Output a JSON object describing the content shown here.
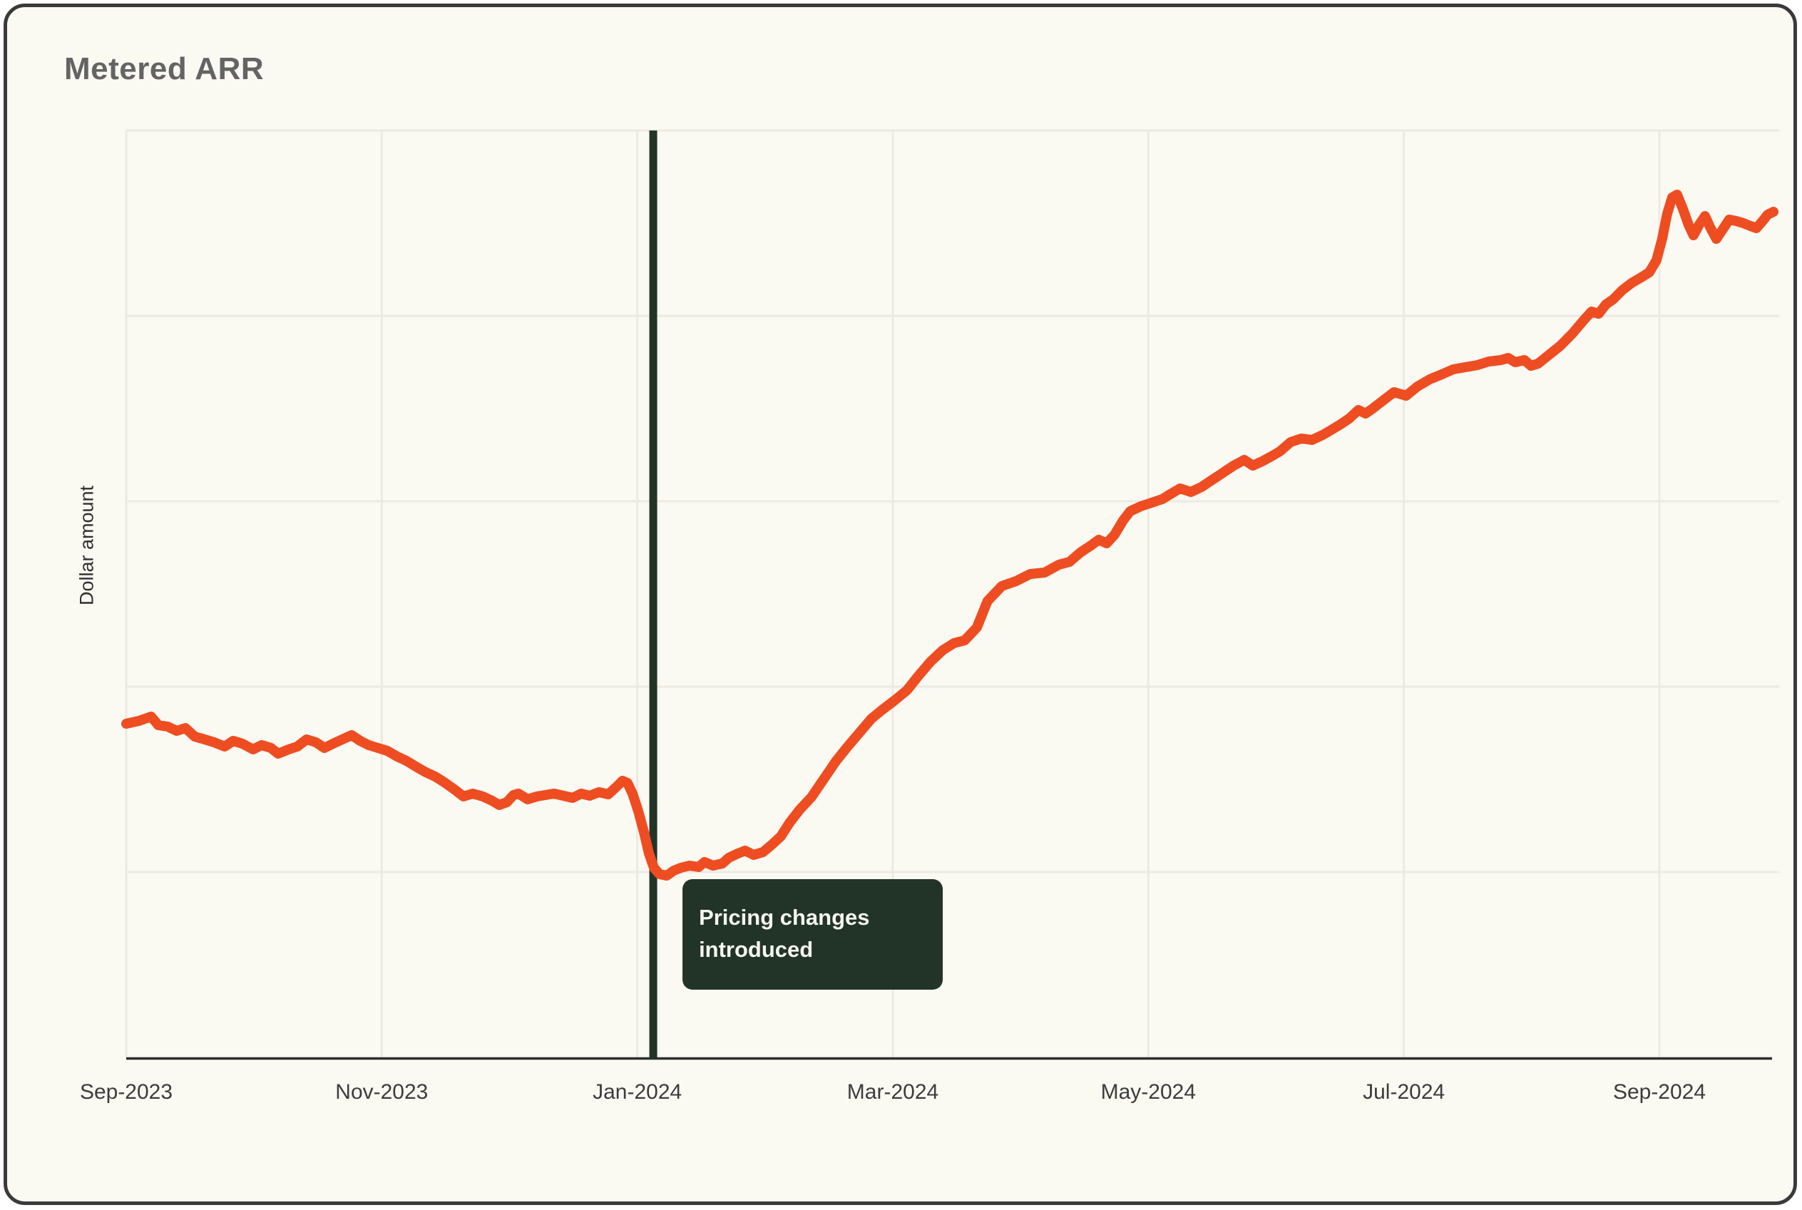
{
  "header": {
    "title": "Metered ARR"
  },
  "colors": {
    "background": "#FAF9F2",
    "card_border": "#3a3a3a",
    "grid": "#ECEAE2",
    "axis": "#2D2D2D",
    "series_line": "#EE4D22",
    "annotation": "#223428",
    "annotation_text": "#F7F6EF",
    "title_text": "#646464",
    "tick_text": "#3C3C3C",
    "ylabel_text": "#2F2F2F"
  },
  "chart_data": {
    "type": "line",
    "title": "Metered ARR",
    "xlabel": "",
    "ylabel": "Dollar amount",
    "legend": "none",
    "grid": {
      "vertical_at_ticks": true,
      "horizontal_lines": 5
    },
    "x_axis": {
      "unit": "months since Sep-2023",
      "lim": [
        0,
        12.94
      ],
      "ticks": [
        {
          "m": 0,
          "label": "Sep-2023"
        },
        {
          "m": 2,
          "label": "Nov-2023"
        },
        {
          "m": 4,
          "label": "Jan-2024"
        },
        {
          "m": 6,
          "label": "Mar-2024"
        },
        {
          "m": 8,
          "label": "May-2024"
        },
        {
          "m": 10,
          "label": "Jul-2024"
        },
        {
          "m": 12,
          "label": "Sep-2024"
        }
      ]
    },
    "y_axis": {
      "label": "Dollar amount",
      "ticks_visible": false,
      "lim": [
        0,
        1300
      ],
      "unit": "relative dollar amount (unlabeled axis)"
    },
    "annotation": {
      "label": "Pricing changes introduced",
      "label_lines": [
        "Pricing changes",
        "introduced"
      ],
      "x_months": 4.125,
      "date_equivalent": "early Jan-2024"
    },
    "series": [
      {
        "name": "Metered ARR",
        "color": "#EE4D22",
        "points": [
          [
            0.0,
            468
          ],
          [
            0.1,
            472
          ],
          [
            0.195,
            478
          ],
          [
            0.251,
            466
          ],
          [
            0.324,
            464
          ],
          [
            0.396,
            458
          ],
          [
            0.463,
            462
          ],
          [
            0.536,
            450
          ],
          [
            0.614,
            446
          ],
          [
            0.687,
            442
          ],
          [
            0.77,
            436
          ],
          [
            0.837,
            444
          ],
          [
            0.91,
            440
          ],
          [
            0.993,
            432
          ],
          [
            1.06,
            438
          ],
          [
            1.133,
            434
          ],
          [
            1.189,
            426
          ],
          [
            1.272,
            432
          ],
          [
            1.339,
            436
          ],
          [
            1.412,
            446
          ],
          [
            1.484,
            442
          ],
          [
            1.551,
            434
          ],
          [
            1.618,
            440
          ],
          [
            1.691,
            446
          ],
          [
            1.764,
            452
          ],
          [
            1.831,
            444
          ],
          [
            1.898,
            438
          ],
          [
            1.97,
            434
          ],
          [
            2.043,
            430
          ],
          [
            2.121,
            422
          ],
          [
            2.193,
            416
          ],
          [
            2.266,
            408
          ],
          [
            2.344,
            400
          ],
          [
            2.417,
            394
          ],
          [
            2.489,
            386
          ],
          [
            2.567,
            376
          ],
          [
            2.64,
            366
          ],
          [
            2.712,
            370
          ],
          [
            2.791,
            366
          ],
          [
            2.863,
            360
          ],
          [
            2.919,
            354
          ],
          [
            2.98,
            358
          ],
          [
            3.031,
            368
          ],
          [
            3.07,
            370
          ],
          [
            3.142,
            362
          ],
          [
            3.215,
            366
          ],
          [
            3.282,
            368
          ],
          [
            3.349,
            370
          ],
          [
            3.421,
            367
          ],
          [
            3.494,
            364
          ],
          [
            3.561,
            370
          ],
          [
            3.628,
            367
          ],
          [
            3.7,
            372
          ],
          [
            3.773,
            369
          ],
          [
            3.84,
            380
          ],
          [
            3.884,
            388
          ],
          [
            3.923,
            385
          ],
          [
            3.963,
            370
          ],
          [
            4.007,
            346
          ],
          [
            4.052,
            316
          ],
          [
            4.091,
            286
          ],
          [
            4.13,
            266
          ],
          [
            4.174,
            257
          ],
          [
            4.23,
            255
          ],
          [
            4.286,
            262
          ],
          [
            4.342,
            266
          ],
          [
            4.409,
            269
          ],
          [
            4.481,
            267
          ],
          [
            4.526,
            274
          ],
          [
            4.593,
            269
          ],
          [
            4.666,
            272
          ],
          [
            4.716,
            280
          ],
          [
            4.788,
            286
          ],
          [
            4.844,
            290
          ],
          [
            4.911,
            284
          ],
          [
            4.984,
            288
          ],
          [
            5.051,
            298
          ],
          [
            5.123,
            310
          ],
          [
            5.196,
            330
          ],
          [
            5.274,
            348
          ],
          [
            5.363,
            365
          ],
          [
            5.458,
            390
          ],
          [
            5.553,
            415
          ],
          [
            5.642,
            435
          ],
          [
            5.737,
            455
          ],
          [
            5.832,
            475
          ],
          [
            5.921,
            488
          ],
          [
            6.016,
            501
          ],
          [
            6.111,
            515
          ],
          [
            6.2,
            535
          ],
          [
            6.295,
            555
          ],
          [
            6.39,
            571
          ],
          [
            6.479,
            581
          ],
          [
            6.563,
            585
          ],
          [
            6.658,
            603
          ],
          [
            6.741,
            640
          ],
          [
            6.853,
            661
          ],
          [
            6.965,
            668
          ],
          [
            7.076,
            678
          ],
          [
            7.188,
            680
          ],
          [
            7.3,
            691
          ],
          [
            7.383,
            695
          ],
          [
            7.467,
            708
          ],
          [
            7.551,
            718
          ],
          [
            7.612,
            726
          ],
          [
            7.674,
            721
          ],
          [
            7.735,
            733
          ],
          [
            7.802,
            753
          ],
          [
            7.858,
            766
          ],
          [
            7.942,
            773
          ],
          [
            8.026,
            778
          ],
          [
            8.109,
            783
          ],
          [
            8.182,
            791
          ],
          [
            8.249,
            798
          ],
          [
            8.333,
            793
          ],
          [
            8.416,
            800
          ],
          [
            8.5,
            810
          ],
          [
            8.584,
            820
          ],
          [
            8.668,
            830
          ],
          [
            8.751,
            838
          ],
          [
            8.818,
            830
          ],
          [
            8.891,
            836
          ],
          [
            8.963,
            843
          ],
          [
            9.03,
            850
          ],
          [
            9.114,
            863
          ],
          [
            9.198,
            868
          ],
          [
            9.281,
            866
          ],
          [
            9.365,
            873
          ],
          [
            9.432,
            880
          ],
          [
            9.505,
            888
          ],
          [
            9.572,
            896
          ],
          [
            9.644,
            908
          ],
          [
            9.7,
            903
          ],
          [
            9.756,
            910
          ],
          [
            9.828,
            920
          ],
          [
            9.923,
            933
          ],
          [
            10.018,
            928
          ],
          [
            10.107,
            941
          ],
          [
            10.202,
            951
          ],
          [
            10.297,
            958
          ],
          [
            10.386,
            965
          ],
          [
            10.481,
            968
          ],
          [
            10.576,
            971
          ],
          [
            10.665,
            976
          ],
          [
            10.76,
            978
          ],
          [
            10.816,
            981
          ],
          [
            10.872,
            975
          ],
          [
            10.944,
            978
          ],
          [
            10.995,
            970
          ],
          [
            11.05,
            973
          ],
          [
            11.134,
            985
          ],
          [
            11.224,
            998
          ],
          [
            11.318,
            1015
          ],
          [
            11.413,
            1035
          ],
          [
            11.469,
            1046
          ],
          [
            11.525,
            1043
          ],
          [
            11.581,
            1056
          ],
          [
            11.637,
            1063
          ],
          [
            11.709,
            1076
          ],
          [
            11.782,
            1086
          ],
          [
            11.849,
            1093
          ],
          [
            11.921,
            1101
          ],
          [
            11.977,
            1118
          ],
          [
            12.022,
            1148
          ],
          [
            12.061,
            1183
          ],
          [
            12.1,
            1206
          ],
          [
            12.139,
            1210
          ],
          [
            12.184,
            1190
          ],
          [
            12.228,
            1168
          ],
          [
            12.267,
            1153
          ],
          [
            12.312,
            1168
          ],
          [
            12.357,
            1180
          ],
          [
            12.401,
            1163
          ],
          [
            12.446,
            1148
          ],
          [
            12.491,
            1160
          ],
          [
            12.547,
            1175
          ],
          [
            12.602,
            1173
          ],
          [
            12.658,
            1170
          ],
          [
            12.714,
            1166
          ],
          [
            12.759,
            1163
          ],
          [
            12.803,
            1172
          ],
          [
            12.848,
            1182
          ],
          [
            12.893,
            1186
          ]
        ]
      }
    ]
  }
}
